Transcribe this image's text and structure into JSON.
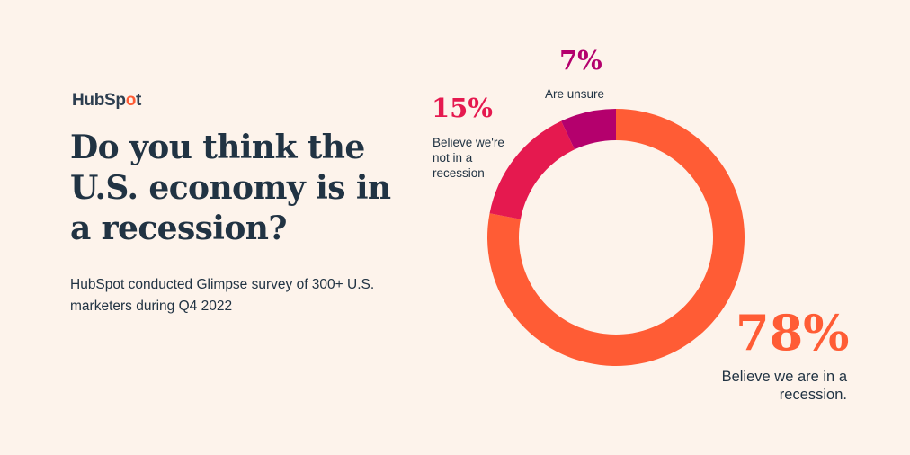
{
  "logo": {
    "text_pre": "HubSp",
    "text_o": "o",
    "text_post": "t"
  },
  "headline": "Do you think the U.S. economy is in a recession?",
  "subtitle": "HubSpot conducted Glimpse survey of 300+ U.S. marketers during Q4 2022",
  "colors": {
    "background": "#fdf3eb",
    "text": "#213343",
    "recession": "#ff5c35",
    "not_recession": "#e5194f",
    "unsure": "#b4006d"
  },
  "chart_data": {
    "type": "pie",
    "title": "Do you think the U.S. economy is in a recession?",
    "donut": true,
    "slices": [
      {
        "label": "Believe we are in a recession.",
        "value": 78,
        "display": "78%",
        "color": "#ff5c35"
      },
      {
        "label": "Believe we're not in a recession",
        "value": 15,
        "display": "15%",
        "color": "#e5194f"
      },
      {
        "label": "Are unsure",
        "value": 7,
        "display": "7%",
        "color": "#b4006d"
      }
    ]
  }
}
